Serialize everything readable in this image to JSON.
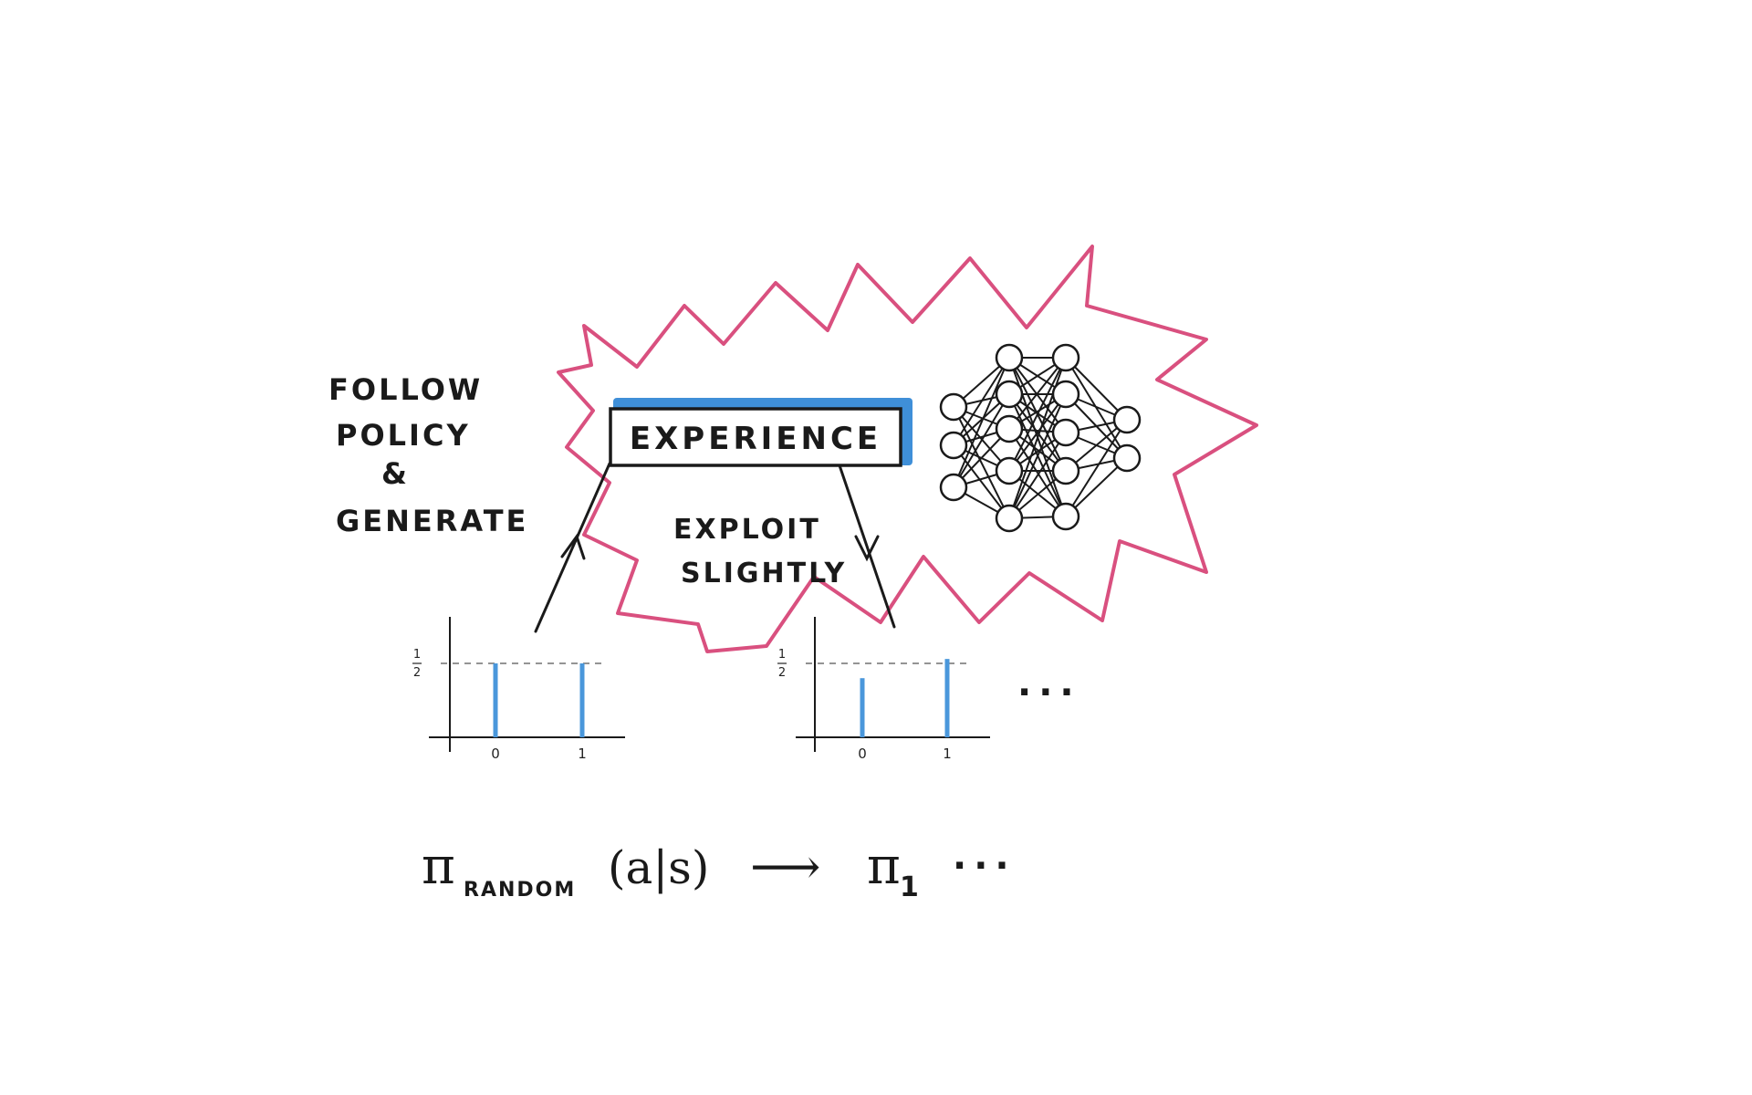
{
  "colors": {
    "burst": "#d9507f",
    "highlight": "#3f8fd8",
    "bar": "#4a97db",
    "ink": "#1a1a1a"
  },
  "left_caption": {
    "line1": "FOLLOW",
    "line2": "POLICY",
    "line3": "&",
    "line4": "GENERATE"
  },
  "experience_label": "EXPERIENCE",
  "exploit_caption": {
    "line1": "EXPLOIT",
    "line2": "SLIGHTLY"
  },
  "network_icon": "neural-network-icon",
  "charts": {
    "ellipsis": "...",
    "items": [
      {
        "y_tick_label": {
          "num": "1",
          "den": "2"
        },
        "categories": [
          "0",
          "1"
        ],
        "values": [
          0.5,
          0.5
        ]
      },
      {
        "y_tick_label": {
          "num": "1",
          "den": "2"
        },
        "categories": [
          "0",
          "1"
        ],
        "values": [
          0.4,
          0.53
        ]
      }
    ]
  },
  "formula": {
    "pi": "π",
    "random_sub": "RANDOM",
    "args": "(a|s)",
    "arrow": "⟶",
    "pi2": "π",
    "sub1": "1",
    "ellipsis": "..."
  }
}
